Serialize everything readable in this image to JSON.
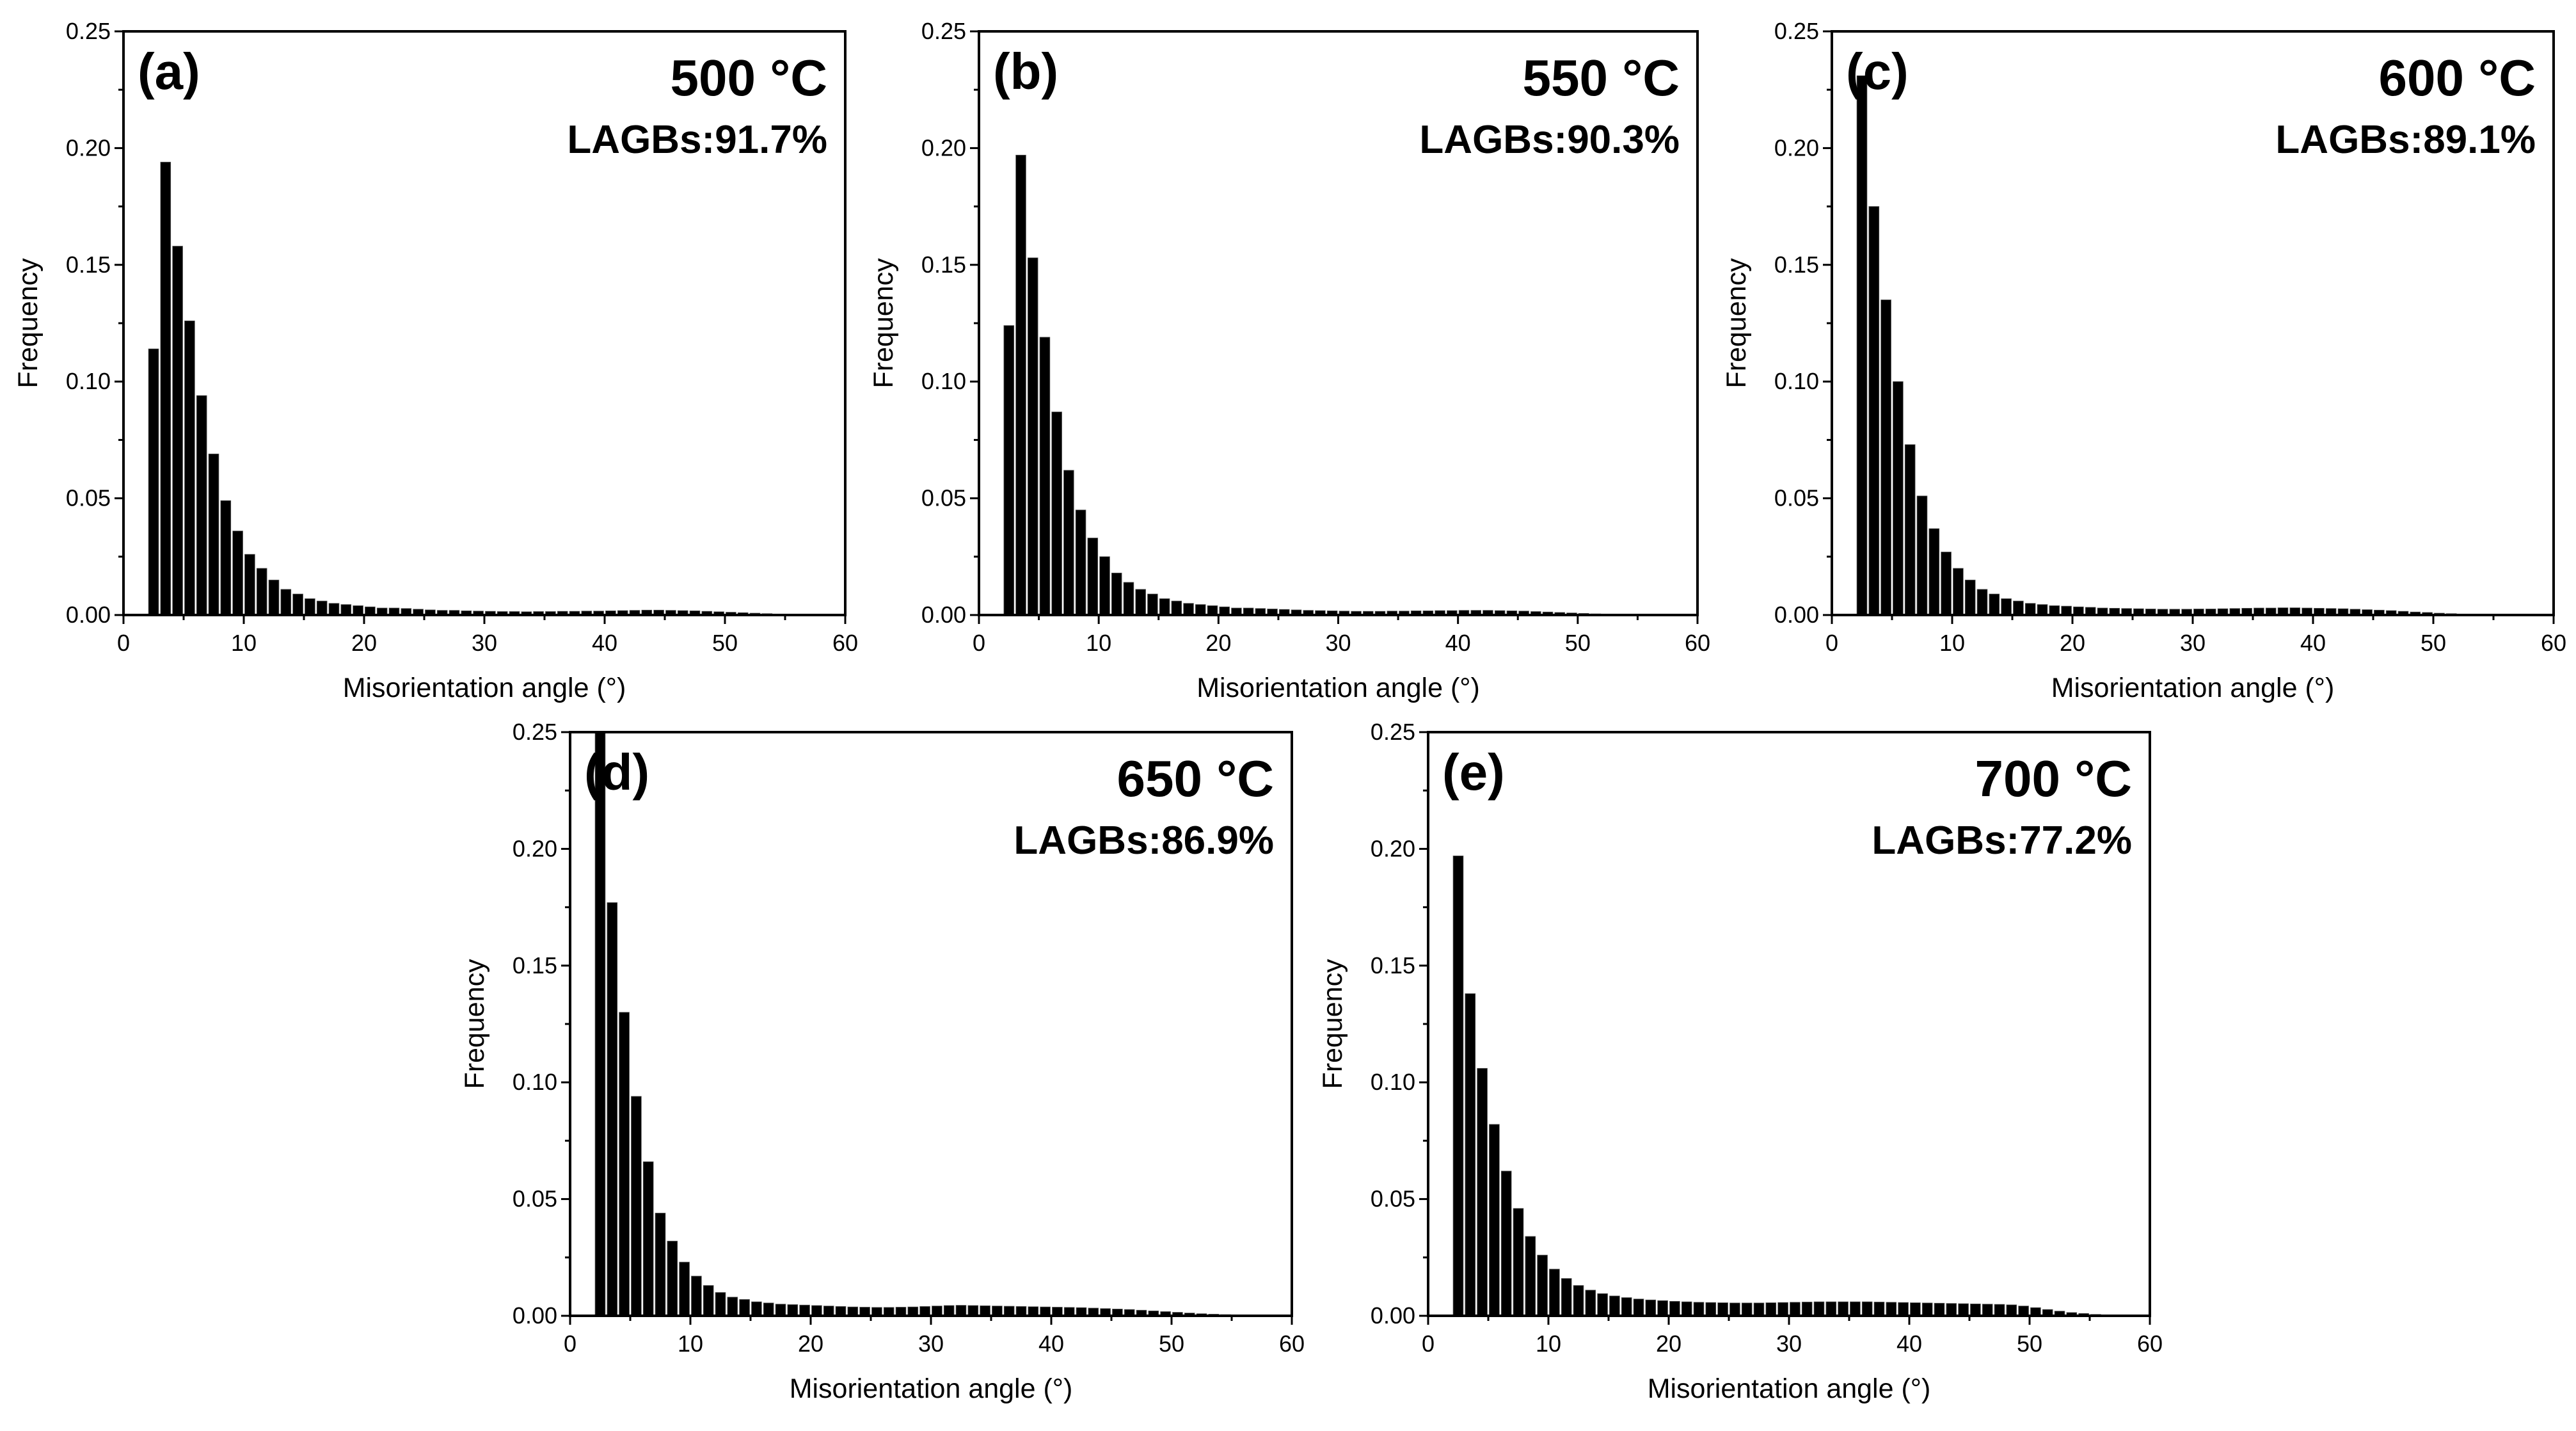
{
  "chart_data": [
    {
      "type": "bar",
      "panel_label": "(a)",
      "temperature": "500 °C",
      "annotation": "LAGBs:91.7%",
      "xlabel": "Misorientation angle (°)",
      "ylabel": "Frequency",
      "xlim": [
        0,
        60
      ],
      "ylim": [
        0,
        0.25
      ],
      "xticks": [
        "0",
        "10",
        "20",
        "30",
        "40",
        "50",
        "60"
      ],
      "yticks": [
        "0.00",
        "0.05",
        "0.10",
        "0.15",
        "0.20",
        "0.25"
      ],
      "bin_start": 2,
      "bin_width": 1,
      "values": [
        0.114,
        0.194,
        0.158,
        0.126,
        0.094,
        0.069,
        0.049,
        0.036,
        0.026,
        0.02,
        0.015,
        0.011,
        0.009,
        0.007,
        0.006,
        0.005,
        0.0045,
        0.004,
        0.0035,
        0.003,
        0.003,
        0.0028,
        0.0025,
        0.0022,
        0.002,
        0.002,
        0.0018,
        0.0017,
        0.0016,
        0.0015,
        0.0015,
        0.0014,
        0.0015,
        0.0015,
        0.0016,
        0.0016,
        0.0017,
        0.0017,
        0.0018,
        0.0019,
        0.002,
        0.0021,
        0.0021,
        0.002,
        0.0019,
        0.0018,
        0.0016,
        0.0014,
        0.0012,
        0.001,
        0.0008,
        0.0006,
        0.0004,
        0.0002,
        0.0001
      ]
    },
    {
      "type": "bar",
      "panel_label": "(b)",
      "temperature": "550 °C",
      "annotation": "LAGBs:90.3%",
      "xlabel": "Misorientation angle (°)",
      "ylabel": "Frequency",
      "xlim": [
        0,
        60
      ],
      "ylim": [
        0,
        0.25
      ],
      "xticks": [
        "0",
        "10",
        "20",
        "30",
        "40",
        "50",
        "60"
      ],
      "yticks": [
        "0.00",
        "0.05",
        "0.10",
        "0.15",
        "0.20",
        "0.25"
      ],
      "bin_start": 2,
      "bin_width": 1,
      "values": [
        0.124,
        0.197,
        0.153,
        0.119,
        0.087,
        0.062,
        0.045,
        0.033,
        0.025,
        0.018,
        0.014,
        0.011,
        0.009,
        0.007,
        0.006,
        0.005,
        0.0045,
        0.004,
        0.0035,
        0.003,
        0.003,
        0.0028,
        0.0026,
        0.0024,
        0.0022,
        0.002,
        0.0019,
        0.0018,
        0.0017,
        0.0016,
        0.0016,
        0.0016,
        0.0017,
        0.0017,
        0.0018,
        0.0018,
        0.0019,
        0.0019,
        0.002,
        0.002,
        0.002,
        0.0019,
        0.0018,
        0.0017,
        0.0015,
        0.0013,
        0.0011,
        0.0009,
        0.0007,
        0.0005,
        0.0003,
        0.0002,
        0.0001
      ]
    },
    {
      "type": "bar",
      "panel_label": "(c)",
      "temperature": "600 °C",
      "annotation": "LAGBs:89.1%",
      "xlabel": "Misorientation angle (°)",
      "ylabel": "Frequency",
      "xlim": [
        0,
        60
      ],
      "ylim": [
        0,
        0.25
      ],
      "xticks": [
        "0",
        "10",
        "20",
        "30",
        "40",
        "50",
        "60"
      ],
      "yticks": [
        "0.00",
        "0.05",
        "0.10",
        "0.15",
        "0.20",
        "0.25"
      ],
      "bin_start": 2,
      "bin_width": 1,
      "values": [
        0.231,
        0.175,
        0.135,
        0.1,
        0.073,
        0.051,
        0.037,
        0.027,
        0.02,
        0.015,
        0.011,
        0.009,
        0.007,
        0.006,
        0.005,
        0.0045,
        0.004,
        0.0038,
        0.0035,
        0.0033,
        0.003,
        0.0029,
        0.0028,
        0.0027,
        0.0026,
        0.0025,
        0.0025,
        0.0025,
        0.0026,
        0.0026,
        0.0027,
        0.0028,
        0.0029,
        0.003,
        0.003,
        0.0031,
        0.0031,
        0.003,
        0.0029,
        0.0028,
        0.0027,
        0.0025,
        0.0023,
        0.0021,
        0.0019,
        0.0016,
        0.0013,
        0.0011,
        0.0008,
        0.0006,
        0.0004,
        0.0003,
        0.0002
      ]
    },
    {
      "type": "bar",
      "panel_label": "(d)",
      "temperature": "650 °C",
      "annotation": "LAGBs:86.9%",
      "xlabel": "Misorientation angle (°)",
      "ylabel": "Frequency",
      "xlim": [
        0,
        60
      ],
      "ylim": [
        0,
        0.25
      ],
      "xticks": [
        "0",
        "10",
        "20",
        "30",
        "40",
        "50",
        "60"
      ],
      "yticks": [
        "0.00",
        "0.05",
        "0.10",
        "0.15",
        "0.20",
        "0.25"
      ],
      "bin_start": 2,
      "bin_width": 1,
      "values": [
        0.25,
        0.177,
        0.13,
        0.094,
        0.066,
        0.044,
        0.032,
        0.023,
        0.017,
        0.013,
        0.01,
        0.008,
        0.007,
        0.006,
        0.0055,
        0.005,
        0.0048,
        0.0046,
        0.0044,
        0.0042,
        0.004,
        0.0038,
        0.0037,
        0.0036,
        0.0036,
        0.0037,
        0.0038,
        0.004,
        0.0042,
        0.0044,
        0.0045,
        0.0044,
        0.0043,
        0.0042,
        0.0041,
        0.004,
        0.0039,
        0.0038,
        0.0037,
        0.0036,
        0.0035,
        0.0033,
        0.0031,
        0.0029,
        0.0027,
        0.0024,
        0.0021,
        0.0018,
        0.0015,
        0.0012,
        0.0009,
        0.0007,
        0.0005,
        0.0003,
        0.0002
      ]
    },
    {
      "type": "bar",
      "panel_label": "(e)",
      "temperature": "700 °C",
      "annotation": "LAGBs:77.2%",
      "xlabel": "Misorientation angle (°)",
      "ylabel": "Frequency",
      "xlim": [
        0,
        60
      ],
      "ylim": [
        0,
        0.25
      ],
      "xticks": [
        "0",
        "10",
        "20",
        "30",
        "40",
        "50",
        "60"
      ],
      "yticks": [
        "0.00",
        "0.05",
        "0.10",
        "0.15",
        "0.20",
        "0.25"
      ],
      "bin_start": 2,
      "bin_width": 1,
      "values": [
        0.197,
        0.138,
        0.106,
        0.082,
        0.062,
        0.046,
        0.034,
        0.026,
        0.02,
        0.016,
        0.013,
        0.011,
        0.0095,
        0.0085,
        0.0078,
        0.0072,
        0.0068,
        0.0065,
        0.0062,
        0.006,
        0.0058,
        0.0057,
        0.0056,
        0.0055,
        0.0055,
        0.0055,
        0.0056,
        0.0057,
        0.0058,
        0.0059,
        0.006,
        0.006,
        0.006,
        0.006,
        0.006,
        0.0059,
        0.0058,
        0.0057,
        0.0056,
        0.0055,
        0.0054,
        0.0053,
        0.0052,
        0.0051,
        0.005,
        0.0049,
        0.0047,
        0.0042,
        0.0035,
        0.0027,
        0.002,
        0.0014,
        0.001,
        0.0006,
        0.0003
      ]
    }
  ]
}
